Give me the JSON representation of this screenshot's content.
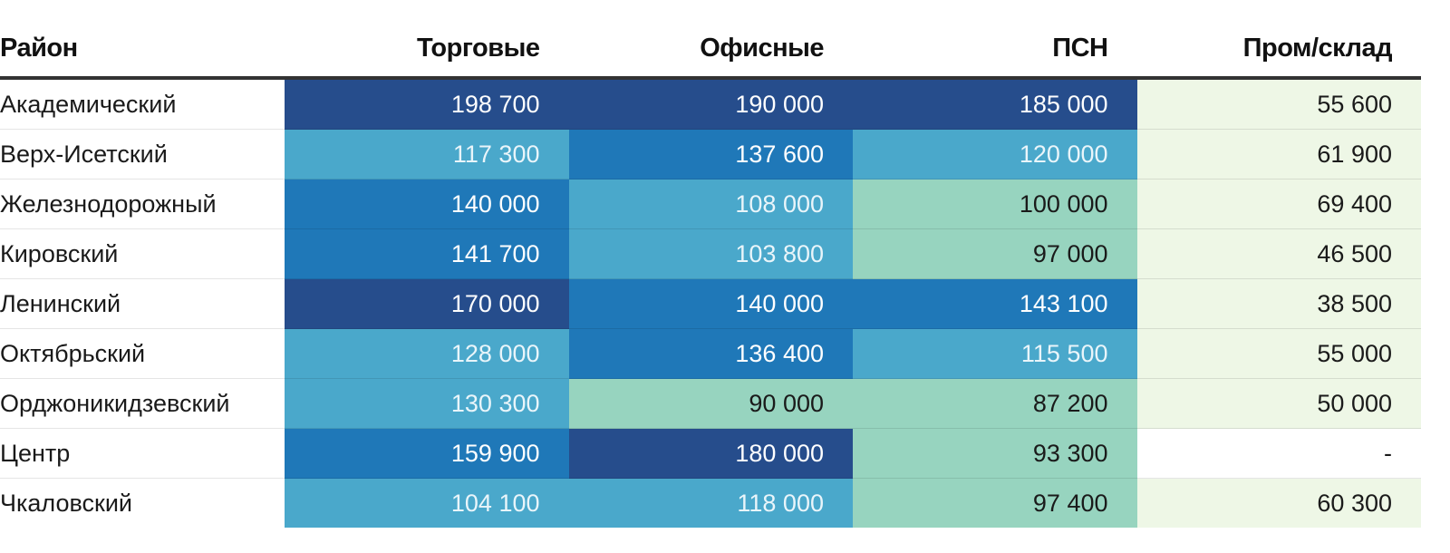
{
  "chart_data": {
    "type": "table",
    "columns": [
      "Район",
      "Торговые",
      "Офисные",
      "ПСН",
      "Пром/склад"
    ],
    "rows": [
      {
        "district": "Академический",
        "values": [
          "198 700",
          "190 000",
          "185 000",
          "55 600"
        ],
        "numeric": [
          198700,
          190000,
          185000,
          55600
        ]
      },
      {
        "district": "Верх-Исетский",
        "values": [
          "117 300",
          "137 600",
          "120 000",
          "61 900"
        ],
        "numeric": [
          117300,
          137600,
          120000,
          61900
        ]
      },
      {
        "district": "Железнодорожный",
        "values": [
          "140 000",
          "108 000",
          "100 000",
          "69 400"
        ],
        "numeric": [
          140000,
          108000,
          100000,
          69400
        ]
      },
      {
        "district": "Кировский",
        "values": [
          "141 700",
          "103 800",
          "97 000",
          "46 500"
        ],
        "numeric": [
          141700,
          103800,
          97000,
          46500
        ]
      },
      {
        "district": "Ленинский",
        "values": [
          "170 000",
          "140 000",
          "143 100",
          "38 500"
        ],
        "numeric": [
          170000,
          140000,
          143100,
          38500
        ]
      },
      {
        "district": "Октябрьский",
        "values": [
          "128 000",
          "136 400",
          "115 500",
          "55 000"
        ],
        "numeric": [
          128000,
          136400,
          115500,
          55000
        ]
      },
      {
        "district": "Орджоникидзевский",
        "values": [
          "130 300",
          "90 000",
          "87 200",
          "50 000"
        ],
        "numeric": [
          130300,
          90000,
          87200,
          50000
        ]
      },
      {
        "district": "Центр",
        "values": [
          "159 900",
          "180 000",
          "93 300",
          "-"
        ],
        "numeric": [
          159900,
          180000,
          93300,
          null
        ]
      },
      {
        "district": "Чкаловский",
        "values": [
          "104 100",
          "118 000",
          "97 400",
          "60 300"
        ],
        "numeric": [
          104100,
          118000,
          97400,
          60300
        ]
      }
    ],
    "color_scale": {
      "bins": [
        {
          "min": 170000,
          "fill": "#264d8c",
          "text": "#ffffff"
        },
        {
          "min": 135000,
          "fill": "#1f78b8",
          "text": "#ffffff"
        },
        {
          "min": 101000,
          "fill": "#4aa8cb",
          "text": "#e9f5fa"
        },
        {
          "min": 80000,
          "fill": "#97d4bf",
          "text": "#1a1a1a"
        },
        {
          "min": 0,
          "fill": "#eef7e6",
          "text": "#1a1a1a"
        }
      ],
      "missing": {
        "fill": "#ffffff",
        "text": "#1a1a1a"
      }
    }
  }
}
